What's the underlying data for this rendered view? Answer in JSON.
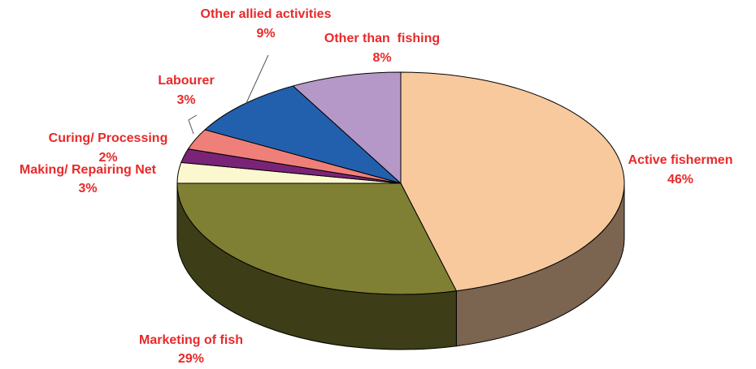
{
  "chart_data": {
    "type": "pie",
    "style": "3d-exploded-none",
    "slices": [
      {
        "label": "Active fishermen",
        "pct_label": "46%",
        "value": 46,
        "top_color": "#f7c99d",
        "side_color": "#7b6450"
      },
      {
        "label": "Marketing of fish",
        "pct_label": "29%",
        "value": 29,
        "top_color": "#7f8034",
        "side_color": "#3d3e17"
      },
      {
        "label": "Making/ Repairing Net",
        "pct_label": "3%",
        "value": 3,
        "top_color": "#fbf7cf",
        "side_color": "#9a9680"
      },
      {
        "label": "Curing/ Processing",
        "pct_label": "2%",
        "value": 2,
        "top_color": "#7a2477",
        "side_color": "#3e113c"
      },
      {
        "label": "Labourer",
        "pct_label": "3%",
        "value": 3,
        "top_color": "#ef8079",
        "side_color": "#8a3f3b"
      },
      {
        "label": "Other allied activities",
        "pct_label": "9%",
        "value": 9,
        "top_color": "#2260ae",
        "side_color": "#12325a"
      },
      {
        "label": "Other than  fishing",
        "pct_label": "8%",
        "value": 8,
        "top_color": "#b598c8",
        "side_color": "#5c4a68"
      }
    ],
    "label_color": "#e8292a"
  }
}
